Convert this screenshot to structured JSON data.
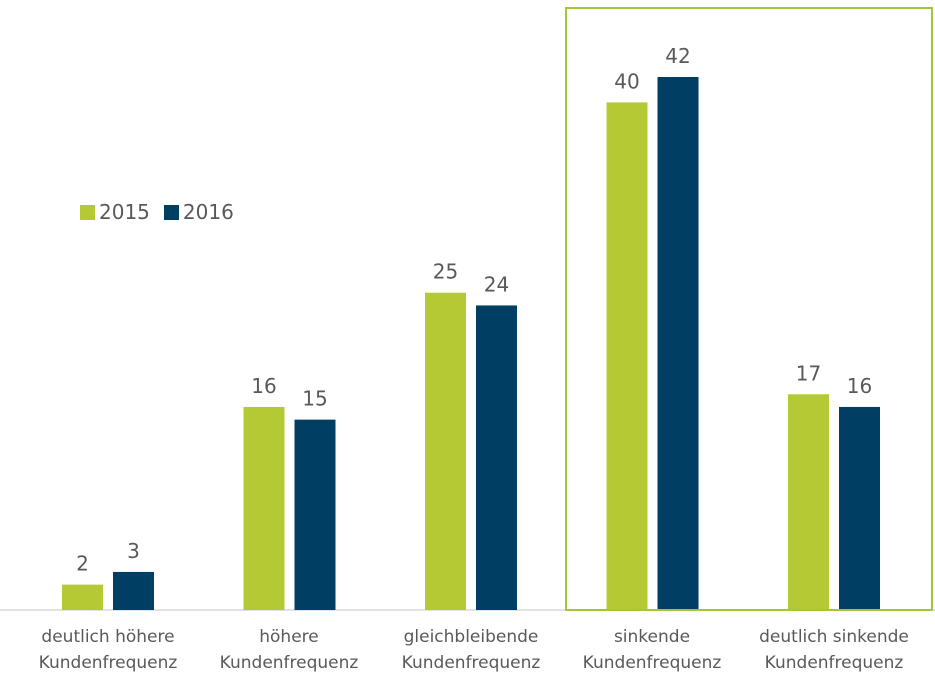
{
  "chart_data": {
    "type": "bar",
    "categories": [
      [
        "deutlich höhere",
        "Kundenfrequenz"
      ],
      [
        "höhere",
        "Kundenfrequenz"
      ],
      [
        "gleichbleibende",
        "Kundenfrequenz"
      ],
      [
        "sinkende",
        "Kundenfrequenz"
      ],
      [
        "deutlich sinkende",
        "Kundenfrequenz"
      ]
    ],
    "series": [
      {
        "name": "2015",
        "values": [
          2,
          16,
          25,
          40,
          17
        ],
        "color": "#b5c935"
      },
      {
        "name": "2016",
        "values": [
          3,
          15,
          24,
          42,
          16
        ],
        "color": "#003f63"
      }
    ],
    "ylim": [
      0,
      42
    ],
    "highlight_category": 3,
    "highlight_color": "#a3c639",
    "legend_position": "top-left",
    "grid": false,
    "title": "",
    "xlabel": "",
    "ylabel": ""
  }
}
